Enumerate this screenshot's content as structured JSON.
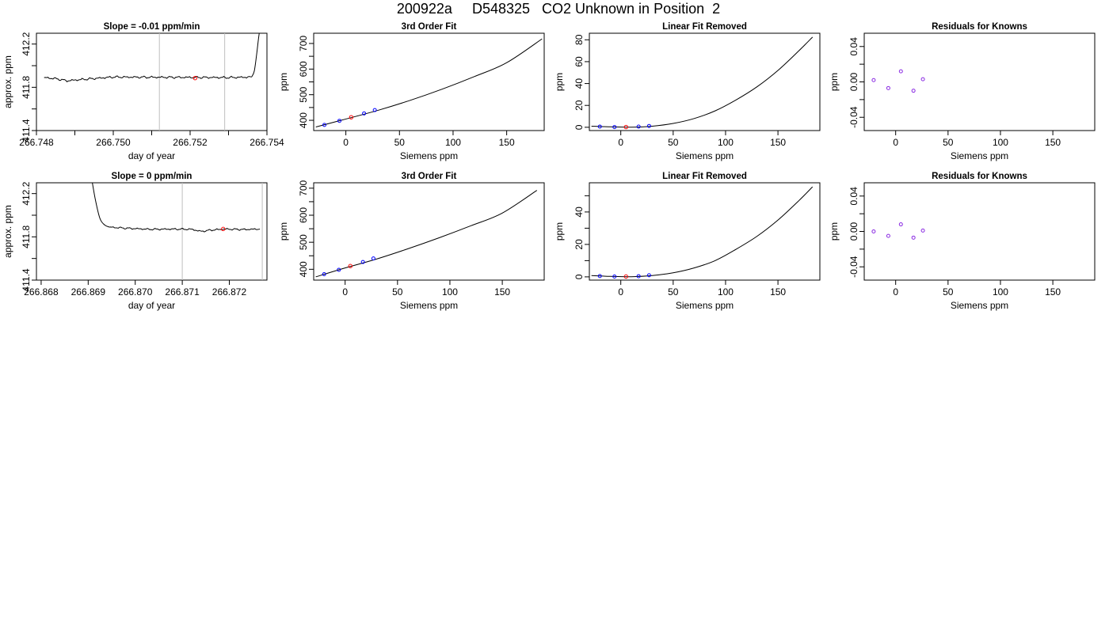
{
  "figure": {
    "title": "200922a     D548325   CO2 Unknown in Position  2"
  },
  "colors": {
    "line": "#000000",
    "known_points": "#0000ff",
    "unknown_point": "#ff0000",
    "residual_points": "#8a2be2",
    "marker_lines": "#bebebe"
  },
  "chart_data": [
    {
      "id": "r1c1",
      "type": "line",
      "title": "Slope =  -0.01  ppm/min",
      "xlabel": "day of year",
      "ylabel": "approx. ppm",
      "xlim": [
        266.748,
        266.754
      ],
      "ylim": [
        411.4,
        412.3
      ],
      "xticks": [
        266.748,
        266.75,
        266.752,
        266.754
      ],
      "xticklabels": [
        "266.748",
        "266.750",
        "266.752",
        "266.754"
      ],
      "xminor": [
        266.749,
        266.751,
        266.753
      ],
      "yticks": [
        411.4,
        411.8,
        412.2
      ],
      "yticklabels": [
        "411.4",
        "411.8",
        "412.2"
      ],
      "yminor": [
        411.6,
        412.0
      ],
      "vlines": [
        266.7512,
        266.7529
      ],
      "series": [
        {
          "style": "wavy",
          "x": [
            266.7482,
            266.7485,
            266.7488,
            266.7491,
            266.75,
            266.751,
            266.752,
            266.753,
            266.7536
          ],
          "y": [
            411.89,
            411.88,
            411.86,
            411.87,
            411.895,
            411.893,
            411.892,
            411.89,
            411.895
          ],
          "amp": 0.01
        },
        {
          "style": "smooth",
          "x": [
            266.7536,
            266.75367,
            266.75373,
            266.75378,
            266.75382
          ],
          "y": [
            411.895,
            411.95,
            412.1,
            412.25,
            412.35
          ]
        }
      ],
      "unknown": [
        {
          "x": 266.75213,
          "y": 411.885
        }
      ]
    },
    {
      "id": "r1c2",
      "type": "line",
      "title": "3rd Order Fit",
      "xlabel": "Siemens ppm",
      "ylabel": "ppm",
      "xlim": [
        -30,
        185
      ],
      "ylim": [
        360,
        740
      ],
      "xticks": [
        0,
        50,
        100,
        150
      ],
      "xticklabels": [
        "0",
        "50",
        "100",
        "150"
      ],
      "yticks": [
        400,
        500,
        600,
        700
      ],
      "yticklabels": [
        "400",
        "500",
        "600",
        "700"
      ],
      "yminor": [
        450,
        550,
        650
      ],
      "curve": {
        "x": [
          -28,
          0,
          30,
          60,
          90,
          120,
          150,
          183
        ],
        "y": [
          374,
          405,
          439,
          478,
          522,
          571,
          625,
          718
        ]
      },
      "known": [
        {
          "x": -20,
          "y": 382
        },
        {
          "x": -6,
          "y": 398
        },
        {
          "x": 17,
          "y": 427
        },
        {
          "x": 27,
          "y": 440
        }
      ],
      "unknown": [
        {
          "x": 5,
          "y": 412
        }
      ]
    },
    {
      "id": "r1c3",
      "type": "line",
      "title": "Linear Fit Removed",
      "xlabel": "Siemens ppm",
      "ylabel": "ppm",
      "xlim": [
        -30,
        190
      ],
      "ylim": [
        -3,
        86
      ],
      "xticks": [
        0,
        50,
        100,
        150
      ],
      "xticklabels": [
        "0",
        "50",
        "100",
        "150"
      ],
      "yticks": [
        0,
        20,
        40,
        60,
        80
      ],
      "yticklabels": [
        "0",
        "20",
        "40",
        "60",
        "80"
      ],
      "curve": {
        "x": [
          -28,
          -10,
          10,
          30,
          50,
          70,
          90,
          110,
          130,
          150,
          170,
          183
        ],
        "y": [
          1.0,
          0.4,
          0.1,
          1.0,
          3.5,
          8.0,
          15.0,
          25.0,
          37.0,
          52.0,
          70.0,
          82.5
        ]
      },
      "known": [
        {
          "x": -20,
          "y": 0.6
        },
        {
          "x": -6,
          "y": 0.2
        },
        {
          "x": 17,
          "y": 0.6
        },
        {
          "x": 27,
          "y": 1.2
        }
      ],
      "unknown": [
        {
          "x": 5,
          "y": 0.2
        }
      ]
    },
    {
      "id": "r1c4",
      "type": "scatter",
      "title": "Residuals for Knowns",
      "xlabel": "Siemens ppm",
      "ylabel": "ppm",
      "xlim": [
        -30,
        190
      ],
      "ylim": [
        -0.055,
        0.055
      ],
      "xticks": [
        0,
        50,
        100,
        150
      ],
      "xticklabels": [
        "0",
        "50",
        "100",
        "150"
      ],
      "yticks": [
        -0.04,
        0.0,
        0.04
      ],
      "yticklabels": [
        "-0.04",
        "0.00",
        "0.04"
      ],
      "yminor": [
        -0.02,
        0.02
      ],
      "points": [
        {
          "x": -21,
          "y": 0.002
        },
        {
          "x": -7,
          "y": -0.007
        },
        {
          "x": 5,
          "y": 0.012
        },
        {
          "x": 17,
          "y": -0.01
        },
        {
          "x": 26,
          "y": 0.003
        }
      ]
    },
    {
      "id": "r2c1",
      "type": "line",
      "title": "Slope =  0  ppm/min",
      "xlabel": "day of year",
      "ylabel": "approx. ppm",
      "xlim": [
        266.8679,
        266.8728
      ],
      "ylim": [
        411.4,
        412.3
      ],
      "xticks": [
        266.868,
        266.869,
        266.87,
        266.871,
        266.872
      ],
      "xticklabels": [
        "266.868",
        "266.869",
        "266.870",
        "266.871",
        "266.872"
      ],
      "yticks": [
        411.4,
        411.8,
        412.2
      ],
      "yticklabels": [
        "411.4",
        "411.8",
        "412.2"
      ],
      "yminor": [
        411.6,
        412.0
      ],
      "vlines": [
        266.871,
        266.8727
      ],
      "series": [
        {
          "style": "smooth",
          "x": [
            266.86905,
            266.86915,
            266.86925,
            266.86935,
            266.86945
          ],
          "y": [
            412.4,
            412.15,
            411.97,
            411.91,
            411.89
          ]
        },
        {
          "style": "wavy",
          "x": [
            266.86945,
            266.8698,
            266.8703,
            266.8708,
            266.8712,
            266.8714,
            266.8716,
            266.8719,
            266.8723,
            266.87265
          ],
          "y": [
            411.89,
            411.88,
            411.87,
            411.872,
            411.87,
            411.85,
            411.862,
            411.872,
            411.868,
            411.872
          ],
          "amp": 0.008
        }
      ],
      "unknown": [
        {
          "x": 266.87187,
          "y": 411.873
        }
      ]
    },
    {
      "id": "r2c2",
      "type": "line",
      "title": "3rd Order Fit",
      "xlabel": "Siemens ppm",
      "ylabel": "ppm",
      "xlim": [
        -30,
        190
      ],
      "ylim": [
        360,
        720
      ],
      "xticks": [
        0,
        50,
        100,
        150
      ],
      "xticklabels": [
        "0",
        "50",
        "100",
        "150"
      ],
      "yticks": [
        400,
        500,
        600,
        700
      ],
      "yticklabels": [
        "400",
        "500",
        "600",
        "700"
      ],
      "yminor": [
        450,
        550,
        650
      ],
      "curve": {
        "x": [
          -28,
          0,
          30,
          60,
          90,
          120,
          150,
          183
        ],
        "y": [
          372,
          405,
          438,
          476,
          517,
          561,
          608,
          692
        ]
      },
      "known": [
        {
          "x": -20,
          "y": 382
        },
        {
          "x": -6,
          "y": 398
        },
        {
          "x": 17,
          "y": 427
        },
        {
          "x": 27,
          "y": 440
        }
      ],
      "unknown": [
        {
          "x": 5,
          "y": 412
        }
      ]
    },
    {
      "id": "r2c3",
      "type": "line",
      "title": "Linear Fit Removed",
      "xlabel": "Siemens ppm",
      "ylabel": "ppm",
      "xlim": [
        -30,
        190
      ],
      "ylim": [
        -2,
        58
      ],
      "xticks": [
        0,
        50,
        100,
        150
      ],
      "xticklabels": [
        "0",
        "50",
        "100",
        "150"
      ],
      "yticks": [
        0,
        20,
        40
      ],
      "yticklabels": [
        "0",
        "20",
        "40"
      ],
      "yminor": [
        10,
        30,
        50
      ],
      "curve": {
        "x": [
          -28,
          -10,
          10,
          30,
          50,
          70,
          90,
          110,
          130,
          150,
          170,
          183
        ],
        "y": [
          0.8,
          0.3,
          0.1,
          0.8,
          2.5,
          5.5,
          10.0,
          17.0,
          25.0,
          35.0,
          47.0,
          55.5
        ]
      },
      "known": [
        {
          "x": -20,
          "y": 0.5
        },
        {
          "x": -6,
          "y": 0.2
        },
        {
          "x": 17,
          "y": 0.4
        },
        {
          "x": 27,
          "y": 1.0
        }
      ],
      "unknown": [
        {
          "x": 5,
          "y": 0.2
        }
      ]
    },
    {
      "id": "r2c4",
      "type": "scatter",
      "title": "Residuals for Knowns",
      "xlabel": "Siemens ppm",
      "ylabel": "ppm",
      "xlim": [
        -30,
        190
      ],
      "ylim": [
        -0.055,
        0.055
      ],
      "xticks": [
        0,
        50,
        100,
        150
      ],
      "xticklabels": [
        "0",
        "50",
        "100",
        "150"
      ],
      "yticks": [
        -0.04,
        0.0,
        0.04
      ],
      "yticklabels": [
        "-0.04",
        "0.00",
        "0.04"
      ],
      "yminor": [
        -0.02,
        0.02
      ],
      "points": [
        {
          "x": -21,
          "y": 0.0
        },
        {
          "x": -7,
          "y": -0.005
        },
        {
          "x": 5,
          "y": 0.008
        },
        {
          "x": 17,
          "y": -0.007
        },
        {
          "x": 26,
          "y": 0.001
        }
      ]
    }
  ]
}
